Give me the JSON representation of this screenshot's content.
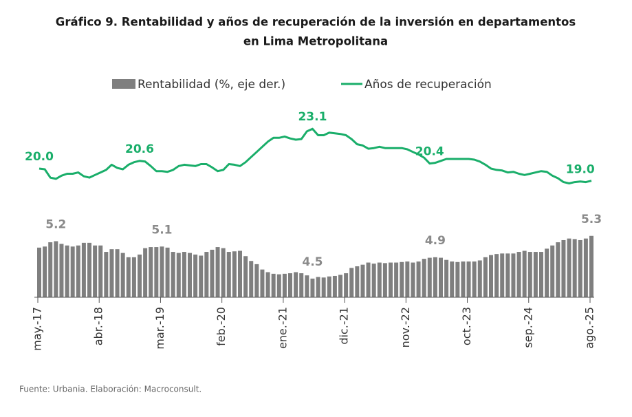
{
  "chart_data": {
    "type": "combo",
    "title": "Gráfico 9. Rentabilidad y años de recuperación de la inversión en departamentos",
    "title_line2": "en Lima Metropolitana",
    "source": "Fuente: Urbania. Elaboración: Macroconsult.",
    "categories": [
      "may.-17",
      null,
      null,
      null,
      null,
      null,
      null,
      null,
      null,
      null,
      null,
      "abr.-18",
      null,
      null,
      null,
      null,
      null,
      null,
      null,
      null,
      null,
      null,
      "mar.-19",
      null,
      null,
      null,
      null,
      null,
      null,
      null,
      null,
      null,
      null,
      "feb.-20",
      null,
      null,
      null,
      null,
      null,
      null,
      null,
      null,
      null,
      null,
      "ene.-21",
      null,
      null,
      null,
      null,
      null,
      null,
      null,
      null,
      null,
      null,
      "dic.-21",
      null,
      null,
      null,
      null,
      null,
      null,
      null,
      null,
      null,
      null,
      "nov.-22",
      null,
      null,
      null,
      null,
      null,
      null,
      null,
      null,
      null,
      null,
      "oct.-23",
      null,
      null,
      null,
      null,
      null,
      null,
      null,
      null,
      null,
      null,
      "sep.-24",
      null,
      null,
      null,
      null,
      null,
      null,
      null,
      null,
      null,
      null,
      "ago.-25"
    ],
    "ylim": [
      18.5,
      23.7
    ],
    "y2lim": [
      4.15,
      5.4
    ],
    "series": [
      {
        "name": "Rentabilidad (%, eje der.)",
        "type": "bar",
        "axis": "y2",
        "color": "#7f7f7f",
        "values": [
          5.08,
          5.1,
          5.18,
          5.2,
          5.15,
          5.12,
          5.1,
          5.12,
          5.17,
          5.17,
          5.12,
          5.12,
          5.0,
          5.05,
          5.05,
          4.98,
          4.9,
          4.9,
          4.95,
          5.07,
          5.09,
          5.09,
          5.1,
          5.08,
          5.0,
          4.98,
          5.0,
          4.98,
          4.95,
          4.93,
          5.0,
          5.04,
          5.09,
          5.07,
          5.0,
          5.01,
          5.02,
          4.92,
          4.83,
          4.77,
          4.67,
          4.62,
          4.59,
          4.58,
          4.59,
          4.6,
          4.62,
          4.6,
          4.56,
          4.5,
          4.53,
          4.52,
          4.54,
          4.55,
          4.57,
          4.6,
          4.7,
          4.73,
          4.76,
          4.8,
          4.78,
          4.8,
          4.79,
          4.8,
          4.8,
          4.81,
          4.82,
          4.8,
          4.82,
          4.87,
          4.89,
          4.9,
          4.89,
          4.85,
          4.82,
          4.81,
          4.82,
          4.82,
          4.82,
          4.84,
          4.9,
          4.94,
          4.96,
          4.97,
          4.97,
          4.97,
          5.0,
          5.02,
          5.0,
          5.0,
          5.0,
          5.06,
          5.12,
          5.18,
          5.22,
          5.25,
          5.24,
          5.22,
          5.25,
          5.3
        ],
        "value_labels": [
          null,
          null,
          null,
          "5.2",
          null,
          null,
          null,
          null,
          null,
          null,
          null,
          null,
          null,
          null,
          null,
          null,
          null,
          null,
          null,
          null,
          null,
          null,
          "5.1",
          null,
          null,
          null,
          null,
          null,
          null,
          null,
          null,
          null,
          null,
          null,
          null,
          null,
          null,
          null,
          null,
          null,
          null,
          null,
          null,
          null,
          null,
          null,
          null,
          null,
          null,
          "4.5",
          null,
          null,
          null,
          null,
          null,
          null,
          null,
          null,
          null,
          null,
          null,
          null,
          null,
          null,
          null,
          null,
          null,
          null,
          null,
          null,
          null,
          "4.9",
          null,
          null,
          null,
          null,
          null,
          null,
          null,
          null,
          null,
          null,
          null,
          null,
          null,
          null,
          null,
          null,
          null,
          null,
          null,
          null,
          null,
          null,
          null,
          null,
          null,
          null,
          null,
          "5.3"
        ]
      },
      {
        "name": "Años de recuperación",
        "type": "line",
        "color": "#1aae6a",
        "values": [
          20,
          19.95,
          19.3,
          19.2,
          19.45,
          19.6,
          19.6,
          19.7,
          19.4,
          19.3,
          19.5,
          19.7,
          19.9,
          20.3,
          20.05,
          19.95,
          20.3,
          20.5,
          20.6,
          20.55,
          20.2,
          19.8,
          19.8,
          19.75,
          19.9,
          20.2,
          20.3,
          20.25,
          20.2,
          20.35,
          20.35,
          20.1,
          19.8,
          19.9,
          20.35,
          20.3,
          20.2,
          20.5,
          20.9,
          21.3,
          21.7,
          22.1,
          22.4,
          22.4,
          22.5,
          22.35,
          22.25,
          22.3,
          22.9,
          23.1,
          22.6,
          22.6,
          22.8,
          22.75,
          22.7,
          22.6,
          22.3,
          21.9,
          21.8,
          21.55,
          21.6,
          21.7,
          21.6,
          21.6,
          21.6,
          21.6,
          21.5,
          21.3,
          21.1,
          20.85,
          20.4,
          20.45,
          20.6,
          20.75,
          20.75,
          20.75,
          20.75,
          20.75,
          20.7,
          20.55,
          20.3,
          20,
          19.9,
          19.85,
          19.7,
          19.75,
          19.6,
          19.5,
          19.6,
          19.7,
          19.8,
          19.75,
          19.45,
          19.25,
          18.95,
          18.85,
          18.95,
          19,
          18.95,
          19.05
        ],
        "value_labels": [
          "20.0",
          null,
          null,
          null,
          null,
          null,
          null,
          null,
          null,
          null,
          null,
          null,
          null,
          null,
          null,
          null,
          null,
          null,
          "20.6",
          null,
          null,
          null,
          null,
          null,
          null,
          null,
          null,
          null,
          null,
          null,
          null,
          null,
          null,
          null,
          null,
          null,
          null,
          null,
          null,
          null,
          null,
          null,
          null,
          null,
          null,
          null,
          null,
          null,
          null,
          "23.1",
          null,
          null,
          null,
          null,
          null,
          null,
          null,
          null,
          null,
          null,
          null,
          null,
          null,
          null,
          null,
          null,
          null,
          null,
          null,
          null,
          "20.4",
          null,
          null,
          null,
          null,
          null,
          null,
          null,
          null,
          null,
          null,
          null,
          null,
          null,
          null,
          null,
          null,
          null,
          null,
          null,
          null,
          null,
          null,
          null,
          null,
          null,
          null,
          "19.0",
          null,
          null
        ]
      }
    ]
  }
}
